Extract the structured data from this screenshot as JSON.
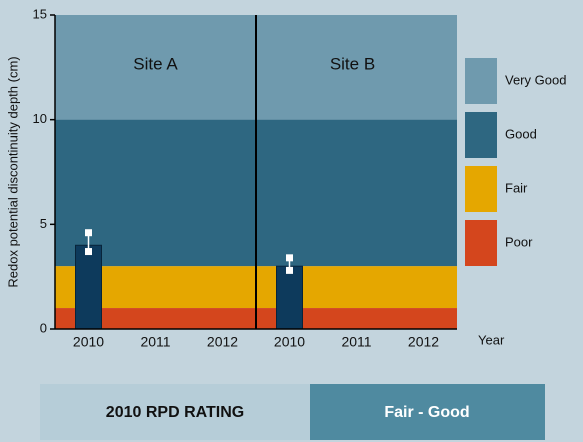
{
  "chart_data": {
    "type": "bar",
    "ylabel": "Redox potential discontinuity depth (cm)",
    "xlabel": "Year",
    "ylim": [
      0,
      15
    ],
    "yticks": [
      0,
      5,
      10,
      15
    ],
    "color": "#0d3a5c",
    "bands": [
      {
        "name": "Very Good",
        "color": "#6f9aae",
        "range": [
          10,
          15
        ]
      },
      {
        "name": "Good",
        "color": "#2e6781",
        "range": [
          3,
          10
        ]
      },
      {
        "name": "Fair",
        "color": "#e5a700",
        "range": [
          1,
          3
        ]
      },
      {
        "name": "Poor",
        "color": "#d4461d",
        "range": [
          0,
          1
        ]
      }
    ],
    "panels": [
      {
        "title": "Site A",
        "categories": [
          "2010",
          "2011",
          "2012"
        ],
        "values": [
          4,
          null,
          null
        ],
        "error_low": [
          3.7,
          null,
          null
        ],
        "error_high": [
          4.6,
          null,
          null
        ]
      },
      {
        "title": "Site B",
        "categories": [
          "2010",
          "2011",
          "2012"
        ],
        "values": [
          3,
          null,
          null
        ],
        "error_low": [
          2.8,
          null,
          null
        ],
        "error_high": [
          3.4,
          null,
          null
        ]
      }
    ]
  },
  "rating": {
    "label": "2010 RPD RATING",
    "value": "Fair - Good"
  }
}
